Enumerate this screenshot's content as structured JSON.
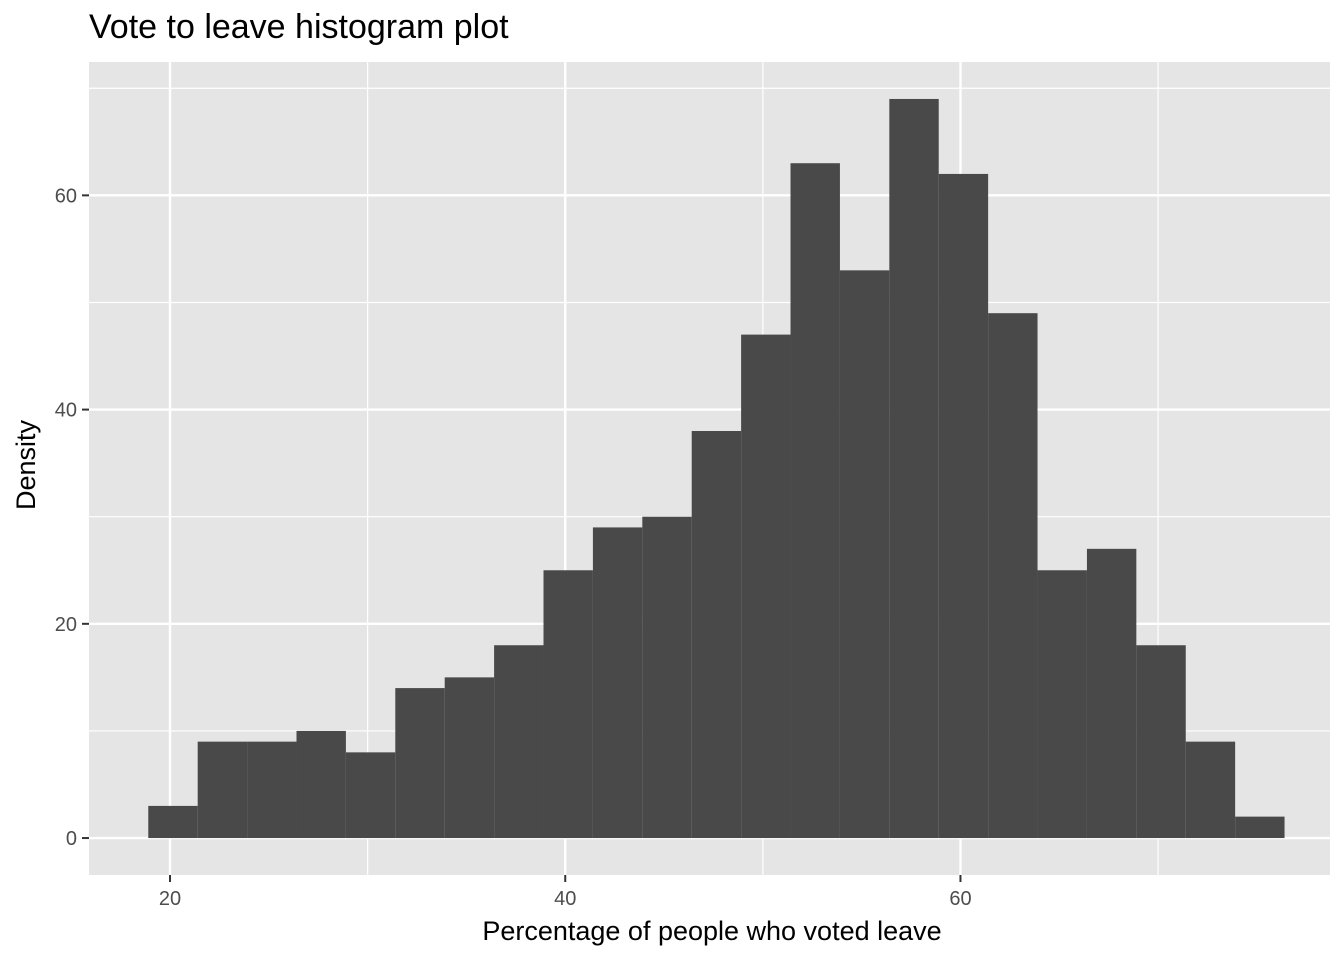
{
  "chart_data": {
    "type": "bar",
    "title": "Vote to leave histogram plot",
    "xlabel": "Percentage of people who voted leave",
    "ylabel": "Density",
    "xlim": [
      15.9,
      78.7
    ],
    "ylim": [
      -3.45,
      72.45
    ],
    "x_ticks": [
      20,
      40,
      60
    ],
    "y_ticks": [
      0,
      20,
      40,
      60
    ],
    "grid": true,
    "bin_width": 2.5,
    "bins": [
      {
        "x0": 18.9,
        "x1": 21.4,
        "count": 3
      },
      {
        "x0": 21.4,
        "x1": 23.9,
        "count": 9
      },
      {
        "x0": 23.9,
        "x1": 26.4,
        "count": 9
      },
      {
        "x0": 26.4,
        "x1": 28.9,
        "count": 10
      },
      {
        "x0": 28.9,
        "x1": 31.4,
        "count": 8
      },
      {
        "x0": 31.4,
        "x1": 33.9,
        "count": 14
      },
      {
        "x0": 33.9,
        "x1": 36.4,
        "count": 15
      },
      {
        "x0": 36.4,
        "x1": 38.9,
        "count": 18
      },
      {
        "x0": 38.9,
        "x1": 41.4,
        "count": 25
      },
      {
        "x0": 41.4,
        "x1": 43.9,
        "count": 29
      },
      {
        "x0": 43.9,
        "x1": 46.4,
        "count": 30
      },
      {
        "x0": 46.4,
        "x1": 48.9,
        "count": 38
      },
      {
        "x0": 48.9,
        "x1": 51.4,
        "count": 47
      },
      {
        "x0": 51.4,
        "x1": 53.9,
        "count": 63
      },
      {
        "x0": 53.9,
        "x1": 56.4,
        "count": 53
      },
      {
        "x0": 56.4,
        "x1": 58.9,
        "count": 69
      },
      {
        "x0": 58.9,
        "x1": 61.4,
        "count": 62
      },
      {
        "x0": 61.4,
        "x1": 63.9,
        "count": 49
      },
      {
        "x0": 63.9,
        "x1": 66.4,
        "count": 25
      },
      {
        "x0": 66.4,
        "x1": 68.9,
        "count": 27
      },
      {
        "x0": 68.9,
        "x1": 71.4,
        "count": 18
      },
      {
        "x0": 71.4,
        "x1": 73.9,
        "count": 9
      },
      {
        "x0": 73.9,
        "x1": 76.4,
        "count": 2
      }
    ],
    "colors": {
      "panel_background": "#e5e5e5",
      "grid": "#ffffff",
      "bar_fill": "#494949",
      "tick_text": "#4d4d4d",
      "tick_mark": "#333333"
    }
  }
}
